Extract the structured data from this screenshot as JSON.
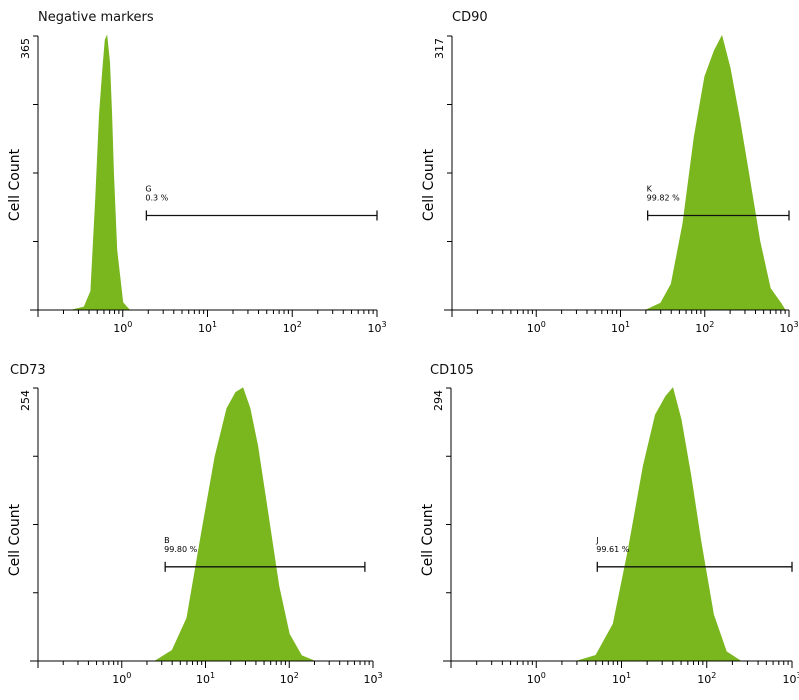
{
  "y_axis_label": "Cell Count",
  "x_tick_labels": [
    "10",
    "10",
    "10",
    "10"
  ],
  "x_tick_exponents": [
    "0",
    "1",
    "2",
    "3"
  ],
  "colors": {
    "histogram": "#7ab61e",
    "axis": "#000000"
  },
  "chart_data": [
    {
      "type": "area",
      "title": "Negative markers",
      "ymax_label": "365",
      "x_scale": "log",
      "xlim": [
        0.1,
        1000
      ],
      "ylim": [
        0,
        365
      ],
      "gate": {
        "name": "G",
        "percent": "0.3 %",
        "x_range": [
          1.9,
          1000
        ]
      },
      "histogram": {
        "x": [
          0.25,
          0.35,
          0.42,
          0.48,
          0.53,
          0.58,
          0.62,
          0.65,
          0.7,
          0.74,
          0.78,
          0.85,
          1.0,
          1.2
        ],
        "y": [
          0,
          4,
          25,
          150,
          260,
          320,
          360,
          365,
          330,
          260,
          180,
          80,
          10,
          0
        ]
      }
    },
    {
      "type": "area",
      "title": "CD90",
      "ymax_label": "317",
      "x_scale": "log",
      "xlim": [
        0.1,
        1000
      ],
      "ylim": [
        0,
        317
      ],
      "gate": {
        "name": "K",
        "percent": "99.82 %",
        "x_range": [
          21,
          1000
        ]
      },
      "histogram": {
        "x": [
          20,
          30,
          40,
          55,
          75,
          100,
          130,
          160,
          200,
          260,
          330,
          450,
          600,
          800,
          900
        ],
        "y": [
          0,
          8,
          30,
          100,
          200,
          270,
          300,
          317,
          280,
          220,
          160,
          80,
          25,
          8,
          0
        ]
      }
    },
    {
      "type": "area",
      "title": "CD73",
      "ymax_label": "254",
      "x_scale": "log",
      "xlim": [
        0.1,
        1000
      ],
      "ylim": [
        0,
        254
      ],
      "gate": {
        "name": "B",
        "percent": "99.80 %",
        "x_range": [
          3.3,
          800
        ]
      },
      "histogram": {
        "x": [
          2.5,
          4,
          6,
          9,
          13,
          18,
          23,
          28,
          34,
          42,
          55,
          75,
          100,
          140,
          200
        ],
        "y": [
          0,
          10,
          40,
          120,
          190,
          235,
          250,
          254,
          235,
          200,
          140,
          70,
          25,
          5,
          0
        ]
      }
    },
    {
      "type": "area",
      "title": "CD105",
      "ymax_label": "294",
      "x_scale": "log",
      "xlim": [
        0.1,
        1000
      ],
      "ylim": [
        0,
        294
      ],
      "gate": {
        "name": "J",
        "percent": "99.61 %",
        "x_range": [
          5.2,
          1000
        ]
      },
      "histogram": {
        "x": [
          3,
          5,
          8,
          12,
          18,
          25,
          33,
          40,
          50,
          65,
          85,
          120,
          170,
          250
        ],
        "y": [
          0,
          6,
          40,
          120,
          210,
          265,
          285,
          294,
          260,
          200,
          130,
          50,
          10,
          0
        ]
      }
    }
  ]
}
